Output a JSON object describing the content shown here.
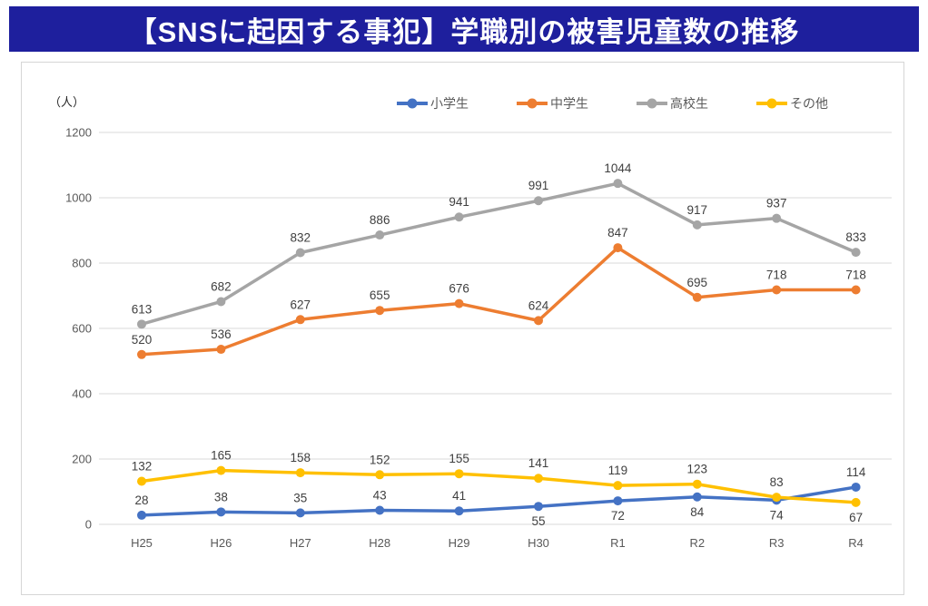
{
  "title": {
    "text": "【SNSに起因する事犯】学職別の被害児童数の推移",
    "bg_color": "#1e1f9d",
    "text_color": "#ffffff"
  },
  "chart_data": {
    "type": "line",
    "title": "【SNSに起因する事犯】学職別の被害児童数の推移",
    "unit_label": "（人）",
    "xlabel": "",
    "ylabel": "",
    "categories": [
      "H25",
      "H26",
      "H27",
      "H28",
      "H29",
      "H30",
      "R1",
      "R2",
      "R3",
      "R4"
    ],
    "y_ticks": [
      0,
      200,
      400,
      600,
      800,
      1000,
      1200
    ],
    "ylim": [
      0,
      1200
    ],
    "grid": true,
    "legend_position": "top",
    "series": [
      {
        "name": "小学生",
        "color": "#4472C4",
        "values": [
          28,
          38,
          35,
          43,
          41,
          55,
          72,
          84,
          74,
          114
        ],
        "label_side": [
          "above",
          "above",
          "above",
          "above",
          "above",
          "below",
          "below",
          "below",
          "below",
          "above"
        ]
      },
      {
        "name": "中学生",
        "color": "#ED7D31",
        "values": [
          520,
          536,
          627,
          655,
          676,
          624,
          847,
          695,
          718,
          718
        ],
        "label_side": [
          "above",
          "above",
          "above",
          "above",
          "above",
          "above",
          "above",
          "above",
          "above",
          "above"
        ]
      },
      {
        "name": "高校生",
        "color": "#A5A5A5",
        "values": [
          613,
          682,
          832,
          886,
          941,
          991,
          1044,
          917,
          937,
          833
        ],
        "label_side": [
          "above",
          "above",
          "above",
          "above",
          "above",
          "above",
          "above",
          "above",
          "above",
          "above"
        ]
      },
      {
        "name": "その他",
        "color": "#FFC000",
        "values": [
          132,
          165,
          158,
          152,
          155,
          141,
          119,
          123,
          83,
          67
        ],
        "label_side": [
          "above",
          "above",
          "above",
          "above",
          "above",
          "above",
          "above",
          "above",
          "above",
          "below"
        ]
      }
    ],
    "style": {
      "grid_color": "#d9d9d9",
      "tick_color": "#595959",
      "data_label_color": "#404040",
      "plot_bg": "#ffffff"
    }
  }
}
